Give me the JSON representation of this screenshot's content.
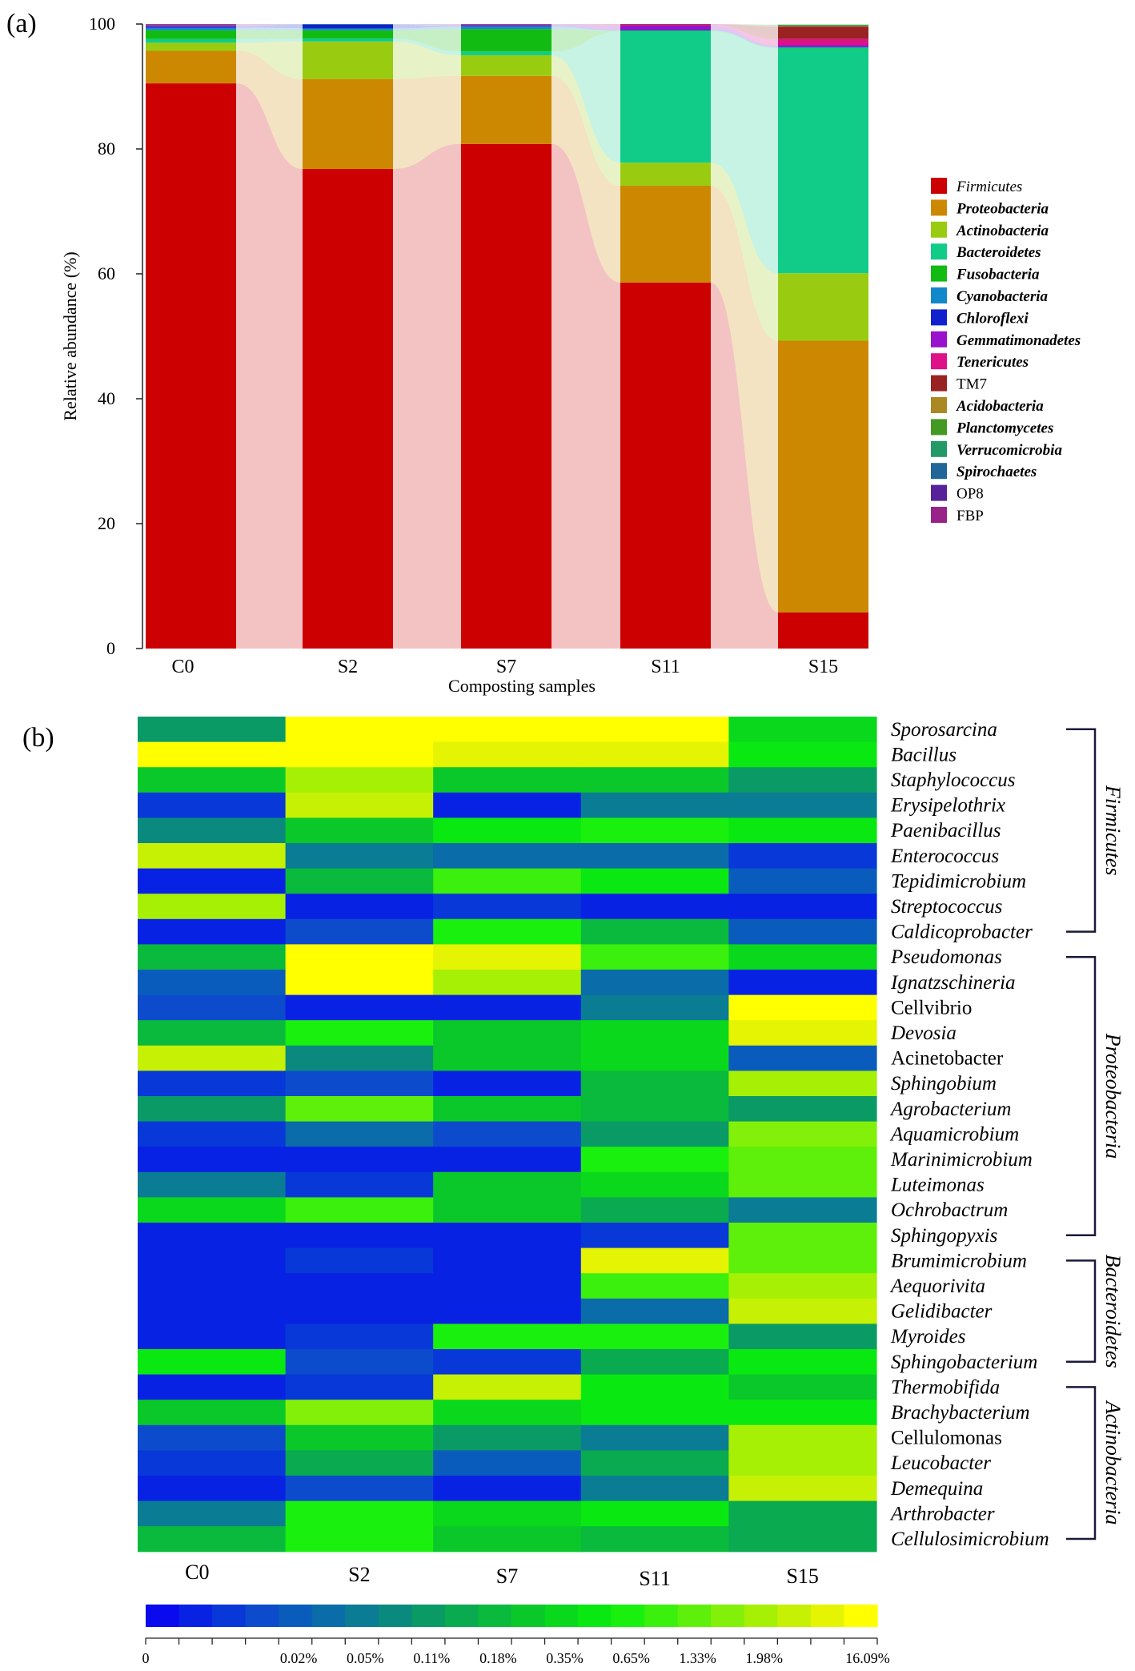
{
  "chart_data": [
    {
      "panel": "(a)",
      "type": "bar",
      "subtype": "stacked-bar-with-alluvial-flows",
      "xlabel": "Composting samples",
      "ylabel": "Relative abundance (%)",
      "ylim": [
        0,
        100
      ],
      "yticks": [
        "0",
        "20",
        "40",
        "60",
        "80",
        "100"
      ],
      "categories": [
        "C0",
        "S2",
        "S7",
        "S11",
        "S15"
      ],
      "legend_position": "right",
      "series": [
        {
          "name": "Firmicutes",
          "color": "#cc0000",
          "style": "italic",
          "values": [
            90.5,
            76.8,
            80.8,
            58.6,
            5.8
          ]
        },
        {
          "name": "Proteobacteria",
          "color": "#cc8800",
          "style": "bold-italic",
          "values": [
            5.2,
            14.4,
            10.9,
            15.5,
            43.5
          ]
        },
        {
          "name": "Actinobacteria",
          "color": "#99cc11",
          "style": "bold-italic",
          "values": [
            1.3,
            6.0,
            3.3,
            3.7,
            10.8
          ]
        },
        {
          "name": "Bacteroidetes",
          "color": "#11cc88",
          "style": "bold-italic",
          "values": [
            0.6,
            0.5,
            0.6,
            21.0,
            36.0
          ]
        },
        {
          "name": "Fusobacteria",
          "color": "#11bb11",
          "style": "bold-italic",
          "values": [
            1.4,
            1.3,
            3.6,
            0.1,
            0.1
          ]
        },
        {
          "name": "Cyanobacteria",
          "color": "#1188cc",
          "style": "bold-italic",
          "values": [
            0.4,
            0.3,
            0.4,
            0.1,
            0.1
          ]
        },
        {
          "name": "Chloroflexi",
          "color": "#1122cc",
          "style": "bold-italic",
          "values": [
            0.2,
            0.6,
            0.1,
            0.1,
            0.1
          ]
        },
        {
          "name": "Gemmatimonadetes",
          "color": "#9911cc",
          "style": "bold-italic",
          "values": [
            0.1,
            0.0,
            0.1,
            0.7,
            0.2
          ]
        },
        {
          "name": "Tenericutes",
          "color": "#dd1188",
          "style": "bold-italic",
          "values": [
            0.1,
            0.0,
            0.1,
            0.1,
            1.0
          ]
        },
        {
          "name": "TM7",
          "color": "#992222",
          "style": "normal",
          "values": [
            0.0,
            0.0,
            0.0,
            0.1,
            2.0
          ]
        },
        {
          "name": "Acidobacteria",
          "color": "#aa8822",
          "style": "bold-italic",
          "values": [
            0.0,
            0.0,
            0.0,
            0.0,
            0.1
          ]
        },
        {
          "name": "Planctomycetes",
          "color": "#449922",
          "style": "bold-italic",
          "values": [
            0.0,
            0.0,
            0.0,
            0.0,
            0.1
          ]
        },
        {
          "name": "Verrucomicrobia",
          "color": "#229966",
          "style": "bold-italic",
          "values": [
            0.0,
            0.0,
            0.0,
            0.0,
            0.1
          ]
        },
        {
          "name": "Spirochaetes",
          "color": "#226699",
          "style": "bold-italic",
          "values": [
            0.1,
            0.1,
            0.1,
            0.0,
            0.0
          ]
        },
        {
          "name": "OP8",
          "color": "#552299",
          "style": "normal",
          "values": [
            0.0,
            0.0,
            0.0,
            0.0,
            0.0
          ]
        },
        {
          "name": "FBP",
          "color": "#992288",
          "style": "normal",
          "values": [
            0.1,
            0.0,
            0.0,
            0.0,
            0.0
          ]
        }
      ]
    },
    {
      "panel": "(b)",
      "type": "heatmap",
      "columns": [
        "C0",
        "S2",
        "S7",
        "S11",
        "S15"
      ],
      "rows": [
        "Sporosarcina",
        "Bacillus",
        "Staphylococcus",
        "Erysipelothrix",
        "Paenibacillus",
        "Enterococcus",
        "Tepidimicrobium",
        "Streptococcus",
        "Caldicoprobacter",
        "Pseudomonas",
        "Ignatzschineria",
        "Cellvibrio",
        "Devosia",
        "Acinetobacter",
        "Sphingobium",
        "Agrobacterium",
        "Aquamicrobium",
        "Marinimicrobium",
        "Luteimonas",
        "Ochrobactrum",
        "Sphingopyxis",
        "Brumimicrobium",
        "Aequorivita",
        "Gelidibacter",
        "Myroides",
        "Sphingobacterium",
        "Thermobifida",
        "Brachybacterium",
        "Cellulomonas",
        "Leucobacter",
        "Demequina",
        "Arthrobacter",
        "Cellulosimicrobium"
      ],
      "italic_rows": [
        "Sporosarcina",
        "Bacillus",
        "Staphylococcus",
        "Erysipelothrix",
        "Paenibacillus",
        "Enterococcus",
        "Tepidimicrobium",
        "Streptococcus",
        "Caldicoprobacter",
        "Pseudomonas",
        "Ignatzschineria",
        "Devosia",
        "Sphingobium",
        "Agrobacterium",
        "Aquamicrobium",
        "Marinimicrobium",
        "Luteimonas",
        "Ochrobactrum",
        "Sphingopyxis",
        "Brumimicrobium",
        "Aequorivita",
        "Gelidibacter",
        "Myroides",
        "Sphingobacterium",
        "Thermobifida",
        "Brachybacterium",
        "Leucobacter",
        "Demequina",
        "Arthrobacter",
        "Cellulosimicrobium"
      ],
      "color_levels": 22,
      "values": [
        [
          8,
          21,
          21,
          21,
          12
        ],
        [
          21,
          21,
          20,
          20,
          13
        ],
        [
          11,
          18,
          11,
          11,
          8
        ],
        [
          2,
          19,
          1,
          6,
          6
        ],
        [
          7,
          11,
          13,
          14,
          13
        ],
        [
          19,
          6,
          5,
          5,
          2
        ],
        [
          1,
          10,
          15,
          13,
          4
        ],
        [
          18,
          1,
          2,
          1,
          1
        ],
        [
          1,
          3,
          14,
          10,
          4
        ],
        [
          10,
          21,
          20,
          15,
          12
        ],
        [
          4,
          21,
          18,
          5,
          1
        ],
        [
          3,
          1,
          1,
          6,
          21
        ],
        [
          10,
          14,
          11,
          12,
          20
        ],
        [
          19,
          7,
          11,
          12,
          4
        ],
        [
          2,
          3,
          1,
          10,
          18
        ],
        [
          8,
          16,
          11,
          10,
          8
        ],
        [
          2,
          5,
          3,
          8,
          17
        ],
        [
          1,
          1,
          1,
          14,
          16
        ],
        [
          6,
          2,
          11,
          12,
          16
        ],
        [
          12,
          15,
          11,
          9,
          6
        ],
        [
          1,
          1,
          1,
          2,
          16
        ],
        [
          1,
          2,
          1,
          20,
          16
        ],
        [
          1,
          1,
          1,
          15,
          18
        ],
        [
          1,
          1,
          1,
          5,
          19
        ],
        [
          1,
          2,
          14,
          14,
          8
        ],
        [
          13,
          3,
          2,
          9,
          13
        ],
        [
          1,
          2,
          19,
          13,
          11
        ],
        [
          11,
          17,
          12,
          13,
          13
        ],
        [
          3,
          11,
          8,
          6,
          18
        ],
        [
          2,
          9,
          4,
          9,
          18
        ],
        [
          1,
          3,
          1,
          6,
          19
        ],
        [
          6,
          14,
          12,
          13,
          9
        ],
        [
          10,
          14,
          11,
          10,
          9
        ]
      ],
      "phylum_groups": [
        {
          "name": "Firmicutes",
          "start": 0,
          "end": 8
        },
        {
          "name": "Proteobacteria",
          "start": 9,
          "end": 20
        },
        {
          "name": "Bacteroidetes",
          "start": 21,
          "end": 25
        },
        {
          "name": "Actinobacteria",
          "start": 26,
          "end": 32
        }
      ],
      "colorbar": {
        "colors": [
          "#0a0aee",
          "#0822e4",
          "#0838d8",
          "#0c4ccc",
          "#0a5cbc",
          "#0a6ca8",
          "#0a7c94",
          "#0a8a7e",
          "#0a9a66",
          "#0aaa50",
          "#0aba3c",
          "#0ac82a",
          "#0ad81c",
          "#0ae812",
          "#1af00e",
          "#3af00c",
          "#5ef00a",
          "#82f008",
          "#a6f006",
          "#c6f004",
          "#e4f402",
          "#ffff00"
        ],
        "tick_labels": [
          "0",
          "0.02%",
          "0.05%",
          "0.11%",
          "0.18%",
          "0.35%",
          "0.65%",
          "1.33%",
          "1.98%",
          "16.09%"
        ]
      }
    }
  ]
}
